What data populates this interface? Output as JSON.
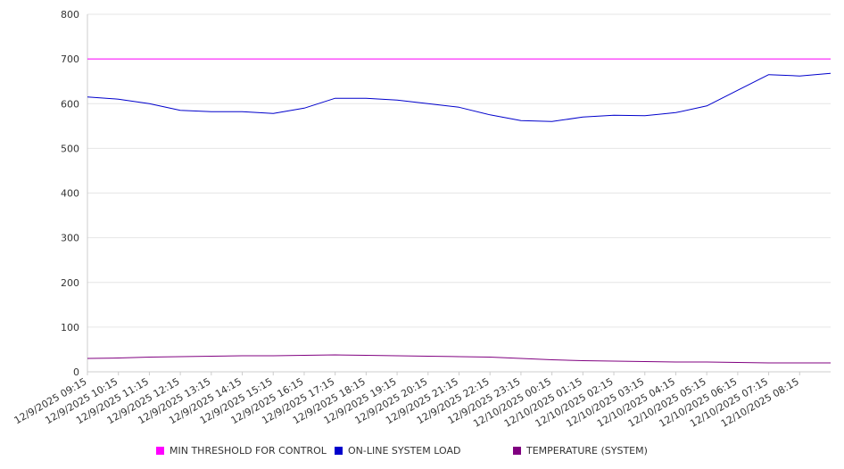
{
  "chart_data": {
    "type": "line",
    "ylim": [
      0,
      800
    ],
    "y_ticks": [
      "0",
      "100",
      "200",
      "300",
      "400",
      "500",
      "600",
      "700",
      "800"
    ],
    "x_tick_labels": [
      "12/9/2025 09:15",
      "12/9/2025 10:15",
      "12/9/2025 11:15",
      "12/9/2025 12:15",
      "12/9/2025 13:15",
      "12/9/2025 14:15",
      "12/9/2025 15:15",
      "12/9/2025 16:15",
      "12/9/2025 17:15",
      "12/9/2025 18:15",
      "12/9/2025 19:15",
      "12/9/2025 20:15",
      "12/9/2025 21:15",
      "12/9/2025 22:15",
      "12/9/2025 23:15",
      "12/10/2025 00:15",
      "12/10/2025 01:15",
      "12/10/2025 02:15",
      "12/10/2025 03:15",
      "12/10/2025 04:15",
      "12/10/2025 05:15",
      "12/10/2025 06:15",
      "12/10/2025 07:15",
      "12/10/2025 08:15"
    ],
    "grid": true,
    "legend_position": "bottom",
    "series": [
      {
        "name": "MIN THRESHOLD FOR CONTROL",
        "color": "#ff00ff",
        "values": [
          700,
          700,
          700,
          700,
          700,
          700,
          700,
          700,
          700,
          700,
          700,
          700,
          700,
          700,
          700,
          700,
          700,
          700,
          700,
          700,
          700,
          700,
          700,
          700,
          700
        ]
      },
      {
        "name": "ON-LINE SYSTEM LOAD",
        "color": "#0000cc",
        "values": [
          615,
          610,
          600,
          585,
          582,
          582,
          578,
          590,
          612,
          612,
          608,
          600,
          592,
          575,
          562,
          560,
          570,
          574,
          573,
          580,
          595,
          630,
          665,
          662,
          668
        ]
      },
      {
        "name": "TEMPERATURE (SYSTEM)",
        "color": "#800080",
        "values": [
          30,
          31,
          33,
          34,
          35,
          36,
          36,
          37,
          38,
          37,
          36,
          35,
          34,
          33,
          30,
          27,
          25,
          24,
          23,
          22,
          22,
          21,
          20,
          20,
          20
        ]
      }
    ]
  }
}
